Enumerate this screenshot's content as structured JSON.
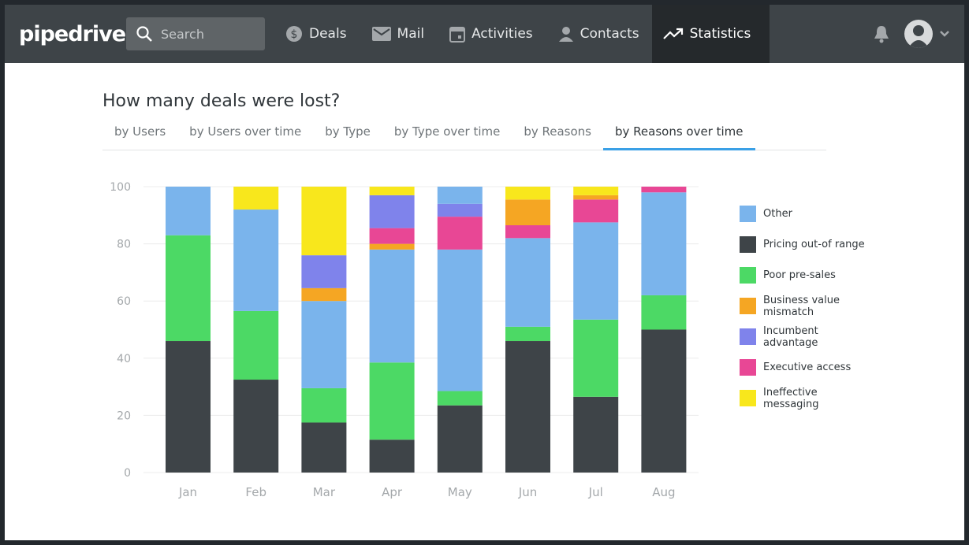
{
  "nav": {
    "logo": "pipedrive",
    "search_placeholder": "Search",
    "items": [
      {
        "label": "Deals",
        "icon": "dollar-icon"
      },
      {
        "label": "Mail",
        "icon": "mail-icon"
      },
      {
        "label": "Activities",
        "icon": "calendar-icon"
      },
      {
        "label": "Contacts",
        "icon": "person-icon"
      },
      {
        "label": "Statistics",
        "icon": "trend-icon"
      }
    ],
    "active": "Statistics"
  },
  "page": {
    "title": "How many deals were lost?",
    "tabs": [
      "by Users",
      "by Users over time",
      "by Type",
      "by Type over time",
      "by Reasons",
      "by Reasons over time"
    ],
    "active_tab": "by Reasons over time"
  },
  "chart_data": {
    "type": "bar",
    "stacked": true,
    "ylim": [
      0,
      100
    ],
    "yticks": [
      "0",
      "20",
      "40",
      "60",
      "80",
      "100"
    ],
    "categories": [
      "Jan",
      "Feb",
      "Mar",
      "Apr",
      "May",
      "Jun",
      "Jul",
      "Aug"
    ],
    "series": [
      {
        "name": "Other",
        "color": "#7ab4ec"
      },
      {
        "name": "Pricing out-of range",
        "color": "#3e4448"
      },
      {
        "name": "Poor pre-sales",
        "color": "#4cd965"
      },
      {
        "name": "Business value mismatch",
        "color": "#f5a623"
      },
      {
        "name": "Incumbent advantage",
        "color": "#7f83eb"
      },
      {
        "name": "Executive access",
        "color": "#e84795"
      },
      {
        "name": "Ineffective messaging",
        "color": "#f8e71c"
      }
    ],
    "stacks": [
      [
        [
          "Pricing out-of range",
          46
        ],
        [
          "Poor pre-sales",
          37
        ],
        [
          "Other",
          17
        ]
      ],
      [
        [
          "Pricing out-of range",
          32.5
        ],
        [
          "Poor pre-sales",
          24
        ],
        [
          "Other",
          35.5
        ],
        [
          "Ineffective messaging",
          8
        ]
      ],
      [
        [
          "Pricing out-of range",
          17.5
        ],
        [
          "Poor pre-sales",
          12
        ],
        [
          "Other",
          30.5
        ],
        [
          "Business value mismatch",
          4.5
        ],
        [
          "Incumbent advantage",
          11.5
        ],
        [
          "Ineffective messaging",
          24
        ]
      ],
      [
        [
          "Pricing out-of range",
          11.5
        ],
        [
          "Poor pre-sales",
          27
        ],
        [
          "Other",
          39.5
        ],
        [
          "Business value mismatch",
          2
        ],
        [
          "Executive access",
          5.5
        ],
        [
          "Incumbent advantage",
          11.5
        ],
        [
          "Ineffective messaging",
          3
        ]
      ],
      [
        [
          "Pricing out-of range",
          23.5
        ],
        [
          "Poor pre-sales",
          5
        ],
        [
          "Other",
          49.5
        ],
        [
          "Executive access",
          11.5
        ],
        [
          "Incumbent advantage",
          4.5
        ],
        [
          "Other",
          6
        ]
      ],
      [
        [
          "Pricing out-of range",
          46
        ],
        [
          "Poor pre-sales",
          5
        ],
        [
          "Other",
          31
        ],
        [
          "Executive access",
          4.5
        ],
        [
          "Business value mismatch",
          9
        ],
        [
          "Ineffective messaging",
          4.5
        ]
      ],
      [
        [
          "Pricing out-of range",
          26.5
        ],
        [
          "Poor pre-sales",
          27
        ],
        [
          "Other",
          34
        ],
        [
          "Executive access",
          8
        ],
        [
          "Business value mismatch",
          1.5
        ],
        [
          "Ineffective messaging",
          3
        ]
      ],
      [
        [
          "Pricing out-of range",
          50
        ],
        [
          "Poor pre-sales",
          12
        ],
        [
          "Other",
          36
        ],
        [
          "Executive access",
          2
        ]
      ]
    ],
    "legend_position": "right",
    "grid": true
  }
}
